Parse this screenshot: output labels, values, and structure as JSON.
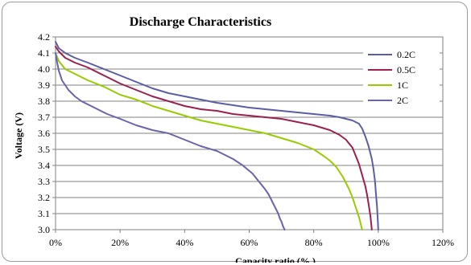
{
  "chart_data": {
    "type": "line",
    "title": "Discharge Characteristics",
    "xlabel": "Capacity ratio (% )",
    "ylabel": "Voltage (V)",
    "xlim": [
      0,
      120
    ],
    "ylim": [
      3.0,
      4.2
    ],
    "x_ticks": [
      "0%",
      "20%",
      "40%",
      "60%",
      "80%",
      "100%",
      "120%"
    ],
    "y_ticks": [
      "3.0",
      "3.1",
      "3.2",
      "3.3",
      "3.4",
      "3.5",
      "3.6",
      "3.7",
      "3.8",
      "3.9",
      "4.0",
      "4.1",
      "4.2"
    ],
    "grid": "horizontal",
    "legend_position": "right",
    "series": [
      {
        "name": "0.2C",
        "color": "#5b5ea6",
        "x": [
          0,
          1,
          3,
          6,
          10,
          15,
          20,
          25,
          30,
          35,
          40,
          45,
          50,
          55,
          60,
          65,
          70,
          75,
          80,
          85,
          88,
          90,
          92,
          94,
          95,
          96,
          97,
          98,
          98.5,
          99,
          99.3,
          99.6,
          99.8,
          100
        ],
        "y": [
          4.17,
          4.13,
          4.1,
          4.07,
          4.04,
          4.0,
          3.96,
          3.92,
          3.88,
          3.85,
          3.83,
          3.81,
          3.79,
          3.775,
          3.76,
          3.75,
          3.74,
          3.73,
          3.72,
          3.71,
          3.7,
          3.69,
          3.68,
          3.66,
          3.63,
          3.58,
          3.52,
          3.44,
          3.38,
          3.3,
          3.22,
          3.15,
          3.08,
          3.0
        ]
      },
      {
        "name": "0.5C",
        "color": "#9c1f4f",
        "x": [
          0,
          1,
          3,
          6,
          10,
          15,
          20,
          25,
          30,
          35,
          40,
          45,
          50,
          55,
          60,
          65,
          70,
          75,
          80,
          85,
          88,
          90,
          92,
          93,
          94,
          95,
          96,
          96.5,
          97,
          97.3,
          97.6,
          97.8,
          98
        ],
        "y": [
          4.14,
          4.11,
          4.07,
          4.04,
          4.01,
          3.96,
          3.91,
          3.87,
          3.83,
          3.8,
          3.77,
          3.75,
          3.74,
          3.72,
          3.71,
          3.7,
          3.69,
          3.67,
          3.65,
          3.62,
          3.59,
          3.56,
          3.51,
          3.46,
          3.41,
          3.34,
          3.27,
          3.22,
          3.16,
          3.12,
          3.08,
          3.04,
          3.0
        ]
      },
      {
        "name": "1C",
        "color": "#99cc00",
        "x": [
          0,
          1,
          3,
          6,
          10,
          15,
          20,
          25,
          30,
          35,
          40,
          45,
          50,
          55,
          60,
          65,
          70,
          75,
          80,
          83,
          85,
          87,
          89,
          90,
          91,
          92,
          93,
          94,
          94.5,
          95
        ],
        "y": [
          4.1,
          4.05,
          4.0,
          3.97,
          3.93,
          3.89,
          3.84,
          3.81,
          3.77,
          3.74,
          3.71,
          3.68,
          3.66,
          3.64,
          3.62,
          3.6,
          3.57,
          3.54,
          3.5,
          3.46,
          3.43,
          3.39,
          3.33,
          3.29,
          3.25,
          3.2,
          3.14,
          3.08,
          3.04,
          3.0
        ]
      },
      {
        "name": "2C",
        "color": "#6a64ad",
        "x": [
          0,
          0.5,
          1,
          2,
          4,
          6,
          8,
          10,
          13,
          16,
          20,
          25,
          30,
          35,
          40,
          45,
          50,
          55,
          58,
          61,
          63,
          65,
          66,
          67,
          68,
          69,
          69.5,
          70,
          70.5,
          71
        ],
        "y": [
          4.1,
          4.04,
          3.99,
          3.93,
          3.87,
          3.83,
          3.8,
          3.78,
          3.75,
          3.72,
          3.69,
          3.65,
          3.62,
          3.6,
          3.56,
          3.52,
          3.49,
          3.44,
          3.4,
          3.35,
          3.3,
          3.25,
          3.22,
          3.18,
          3.14,
          3.1,
          3.07,
          3.05,
          3.02,
          3.0
        ]
      }
    ]
  }
}
